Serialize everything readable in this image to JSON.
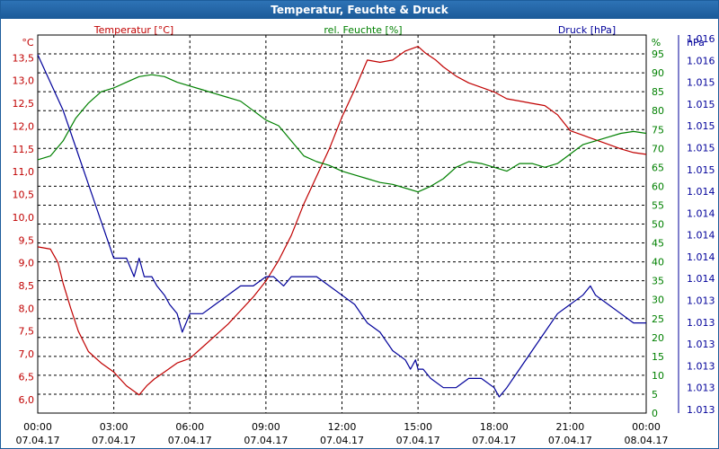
{
  "window": {
    "title": "Temperatur, Feuchte & Druck"
  },
  "colors": {
    "temperature": "#c00000",
    "humidity": "#008000",
    "pressure": "#00009a",
    "grid": "#000000",
    "axis_text": "#000000"
  },
  "chart_data": {
    "type": "line",
    "title": "Temperatur, Feuchte & Druck",
    "x_ticks": [
      {
        "h": 0,
        "time": "00:00",
        "date": "07.04.17"
      },
      {
        "h": 3,
        "time": "03:00",
        "date": "07.04.17"
      },
      {
        "h": 6,
        "time": "06:00",
        "date": "07.04.17"
      },
      {
        "h": 9,
        "time": "09:00",
        "date": "07.04.17"
      },
      {
        "h": 12,
        "time": "12:00",
        "date": "07.04.17"
      },
      {
        "h": 15,
        "time": "15:00",
        "date": "07.04.17"
      },
      {
        "h": 18,
        "time": "18:00",
        "date": "07.04.17"
      },
      {
        "h": 21,
        "time": "21:00",
        "date": "07.04.17"
      },
      {
        "h": 24,
        "time": "00:00",
        "date": "08.04.17"
      }
    ],
    "xlim": [
      0,
      24
    ],
    "axes": {
      "temperature": {
        "label": "Temperatur [°C]",
        "unit": "°C",
        "ylim": [
          5.7,
          14.0
        ],
        "ticks": [
          6.0,
          6.5,
          7.0,
          7.5,
          8.0,
          8.5,
          9.0,
          9.5,
          10.0,
          10.5,
          11.0,
          11.5,
          12.0,
          12.5,
          13.0,
          13.5
        ],
        "tick_labels": [
          "6,0",
          "6,5",
          "7,0",
          "7,5",
          "8,0",
          "8,5",
          "9,0",
          "9,5",
          "10,0",
          "10,5",
          "11,0",
          "11,5",
          "12,0",
          "12,5",
          "13,0",
          "13,5"
        ]
      },
      "humidity": {
        "label": "rel. Feuchte [%]",
        "unit": "%",
        "ylim": [
          0,
          100
        ],
        "ticks": [
          0,
          5,
          10,
          15,
          20,
          25,
          30,
          35,
          40,
          45,
          50,
          55,
          60,
          65,
          70,
          75,
          80,
          85,
          90,
          95
        ],
        "tick_labels": [
          "0",
          "5",
          "10",
          "15",
          "20",
          "25",
          "30",
          "35",
          "40",
          "45",
          "50",
          "55",
          "60",
          "65",
          "70",
          "75",
          "80",
          "85",
          "90",
          "95"
        ]
      },
      "pressure": {
        "label": "Druck [hPa]",
        "unit": "hPa",
        "tick_labels": [
          "1.013",
          "1.013",
          "1.013",
          "1.013",
          "1.013",
          "1.013",
          "1.014",
          "1.014",
          "1.014",
          "1.014",
          "1.014",
          "1.015",
          "1.015",
          "1.015",
          "1.015",
          "1.015",
          "1.016",
          "1.016"
        ]
      }
    },
    "series": [
      {
        "name": "Temperatur",
        "axis": "temperature",
        "color": "#c00000",
        "x": [
          0,
          0.5,
          0.8,
          1.0,
          1.3,
          1.6,
          2.0,
          2.5,
          3.0,
          3.5,
          4.0,
          4.3,
          4.6,
          5.0,
          5.5,
          6.0,
          6.5,
          7.0,
          7.5,
          8.0,
          8.5,
          9.0,
          9.5,
          10.0,
          10.5,
          11.0,
          11.5,
          12.0,
          12.5,
          13.0,
          13.5,
          14.0,
          14.5,
          15.0,
          15.3,
          15.7,
          16.0,
          16.5,
          17.0,
          17.5,
          18.0,
          18.5,
          19.0,
          19.5,
          20.0,
          20.5,
          21.0,
          21.5,
          22.0,
          22.5,
          23.0,
          23.5,
          24.0
        ],
        "y": [
          9.35,
          9.3,
          9.0,
          8.55,
          8.0,
          7.5,
          7.05,
          6.8,
          6.6,
          6.3,
          6.1,
          6.3,
          6.45,
          6.6,
          6.8,
          6.9,
          7.15,
          7.4,
          7.65,
          7.95,
          8.25,
          8.6,
          9.05,
          9.6,
          10.3,
          10.9,
          11.5,
          12.2,
          12.8,
          13.45,
          13.4,
          13.45,
          13.65,
          13.75,
          13.6,
          13.45,
          13.3,
          13.1,
          12.95,
          12.85,
          12.75,
          12.6,
          12.55,
          12.5,
          12.45,
          12.25,
          11.9,
          11.8,
          11.7,
          11.6,
          11.5,
          11.42,
          11.38
        ]
      },
      {
        "name": "rel. Feuchte",
        "axis": "humidity",
        "color": "#008000",
        "x": [
          0,
          0.5,
          1.0,
          1.5,
          2.0,
          2.5,
          3.0,
          3.5,
          4.0,
          4.5,
          5.0,
          5.5,
          6.0,
          6.5,
          7.0,
          7.5,
          8.0,
          8.5,
          9.0,
          9.5,
          10.0,
          10.5,
          11.0,
          11.5,
          12.0,
          12.5,
          13.0,
          13.5,
          14.0,
          14.5,
          15.0,
          15.5,
          16.0,
          16.5,
          17.0,
          17.5,
          18.0,
          18.5,
          19.0,
          19.5,
          20.0,
          20.5,
          21.0,
          21.5,
          22.0,
          22.5,
          23.0,
          23.5,
          24.0
        ],
        "y": [
          67,
          68,
          72,
          78,
          82,
          85,
          86,
          87.5,
          89,
          89.5,
          89,
          87.5,
          86.5,
          85.5,
          84.5,
          83.5,
          82.5,
          80,
          77.5,
          76,
          72,
          68,
          66.5,
          65.5,
          64,
          63,
          62,
          61,
          60.5,
          59.5,
          58.5,
          60,
          62,
          65,
          66.5,
          66,
          65,
          64,
          66,
          66,
          65,
          66,
          68.5,
          71,
          72,
          73,
          74,
          74.5,
          74
        ]
      },
      {
        "name": "Druck",
        "axis": "pressure",
        "color": "#00009a",
        "x": [
          0,
          0.5,
          1.0,
          1.5,
          2.0,
          2.5,
          3.0,
          3.5,
          3.8,
          4.0,
          4.2,
          4.5,
          4.7,
          5.0,
          5.2,
          5.5,
          5.7,
          6.0,
          6.5,
          7.0,
          7.5,
          8.0,
          8.5,
          9.0,
          9.3,
          9.7,
          10.0,
          10.5,
          11.0,
          11.5,
          12.0,
          12.5,
          13.0,
          13.5,
          14.0,
          14.5,
          14.7,
          14.9,
          15.0,
          15.2,
          15.5,
          16.0,
          16.5,
          17.0,
          17.5,
          18.0,
          18.2,
          18.5,
          19.0,
          19.5,
          20.0,
          20.5,
          21.0,
          21.5,
          21.8,
          22.0,
          22.5,
          23.0,
          23.5,
          24.0
        ],
        "y": [
          1.0162,
          1.0159,
          1.0156,
          1.0152,
          1.0148,
          1.0144,
          1.014,
          1.014,
          1.0138,
          1.014,
          1.0138,
          1.0138,
          1.0137,
          1.0136,
          1.0135,
          1.0134,
          1.0132,
          1.0134,
          1.0134,
          1.0135,
          1.0136,
          1.0137,
          1.0137,
          1.0138,
          1.0138,
          1.0137,
          1.0138,
          1.0138,
          1.0138,
          1.0137,
          1.0136,
          1.0135,
          1.0133,
          1.0132,
          1.013,
          1.0129,
          1.0128,
          1.0129,
          1.0128,
          1.0128,
          1.0127,
          1.0126,
          1.0126,
          1.0127,
          1.0127,
          1.0126,
          1.0125,
          1.0126,
          1.0128,
          1.013,
          1.0132,
          1.0134,
          1.0135,
          1.0136,
          1.0137,
          1.0136,
          1.0135,
          1.0134,
          1.0133,
          1.0133
        ]
      }
    ]
  }
}
